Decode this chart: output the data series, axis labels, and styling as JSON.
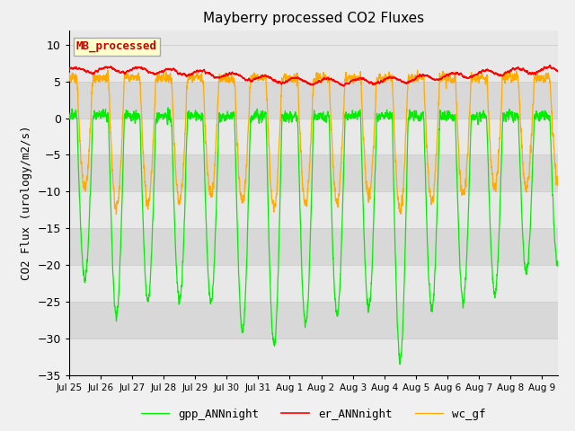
{
  "title": "Mayberry processed CO2 Fluxes",
  "ylabel": "CO2 Flux (urology/m2/s)",
  "ylim": [
    -35,
    12
  ],
  "yticks": [
    -35,
    -30,
    -25,
    -20,
    -15,
    -10,
    -5,
    0,
    5,
    10
  ],
  "background_color": "#f0f0f0",
  "plot_bg_color": "#e8e8e8",
  "legend_label": "MB_processed",
  "legend_bg": "#ffffcc",
  "legend_edge": "#aaaaaa",
  "line_colors": {
    "gpp": "#00ee00",
    "er": "#ff0000",
    "wc": "#ffaa00"
  },
  "n_days": 15.5,
  "n_points": 3720,
  "xtick_labels": [
    "Jul 25",
    "Jul 26",
    "Jul 27",
    "Jul 28",
    "Jul 29",
    "Jul 30",
    "Jul 31",
    "Aug 1",
    "Aug 2",
    "Aug 3",
    "Aug 4",
    "Aug 5",
    "Aug 6",
    "Aug 7",
    "Aug 8",
    "Aug 9"
  ],
  "grid_color": "#d0d0d0",
  "alternating_bands": true,
  "band_colors": [
    "#e8e8e8",
    "#d8d8d8"
  ]
}
